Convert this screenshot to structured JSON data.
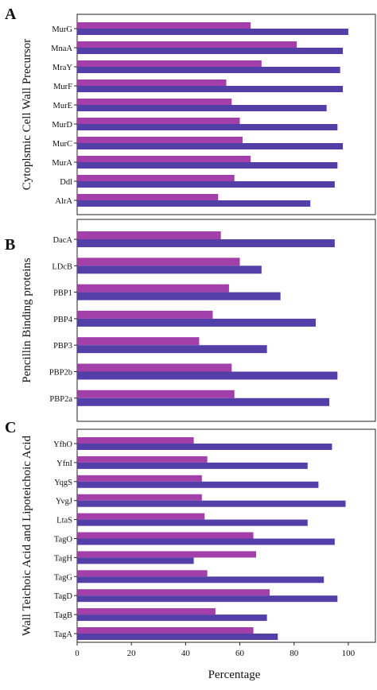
{
  "chart_data": [
    {
      "type": "bar",
      "orientation": "horizontal",
      "panel_label": "A",
      "ylabel": "Cytoplsmic Cell Wall Precursor",
      "categories": [
        "MurG",
        "MnaA",
        "MraY",
        "MurF",
        "MurE",
        "MurD",
        "MurC",
        "MurA",
        "Ddl",
        "AlrA"
      ],
      "series": [
        {
          "color": "#a23fa8",
          "values": [
            64,
            81,
            68,
            55,
            57,
            60,
            61,
            64,
            58,
            52
          ]
        },
        {
          "color": "#5240a8",
          "values": [
            100,
            98,
            97,
            98,
            92,
            96,
            98,
            96,
            95,
            86
          ]
        }
      ],
      "xlim": [
        0,
        110
      ]
    },
    {
      "type": "bar",
      "orientation": "horizontal",
      "panel_label": "B",
      "ylabel": "Pencillin Binding proteins",
      "categories": [
        "DacA",
        "LDcB",
        "PBP1",
        "PBP4",
        "PBP3",
        "PBP2b",
        "PBP2a"
      ],
      "series": [
        {
          "color": "#a23fa8",
          "values": [
            53,
            60,
            56,
            50,
            45,
            57,
            58
          ]
        },
        {
          "color": "#5240a8",
          "values": [
            95,
            68,
            75,
            88,
            70,
            96,
            93
          ]
        }
      ],
      "xlim": [
        0,
        110
      ]
    },
    {
      "type": "bar",
      "orientation": "horizontal",
      "panel_label": "C",
      "ylabel": "Wall Teichoic Acid and Lipoteichoic Acid",
      "xlabel": "Percentage",
      "categories": [
        "YfhO",
        "YfnI",
        "YqgS",
        "YvgJ",
        "LtaS",
        "TagO",
        "TagH",
        "TagG",
        "TagD",
        "TagB",
        "TagA"
      ],
      "series": [
        {
          "color": "#a23fa8",
          "values": [
            43,
            48,
            46,
            46,
            47,
            65,
            66,
            48,
            71,
            51,
            65
          ]
        },
        {
          "color": "#5240a8",
          "values": [
            94,
            85,
            89,
            99,
            85,
            95,
            43,
            91,
            96,
            70,
            74
          ]
        }
      ],
      "xlim": [
        0,
        110
      ],
      "xticks": [
        0,
        20,
        40,
        60,
        80,
        100
      ]
    }
  ]
}
